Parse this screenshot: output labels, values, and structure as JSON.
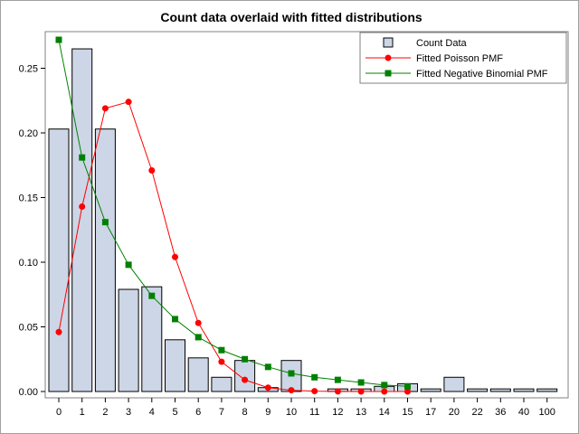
{
  "chart_data": {
    "type": "bar",
    "title": "Count data overlaid with fitted distributions",
    "xlabel": "",
    "ylabel": "",
    "categories": [
      "0",
      "1",
      "2",
      "3",
      "4",
      "5",
      "6",
      "7",
      "8",
      "9",
      "10",
      "11",
      "12",
      "13",
      "14",
      "15",
      "17",
      "20",
      "22",
      "36",
      "40",
      "100"
    ],
    "ylim": [
      0,
      0.28
    ],
    "yticks": [
      0.0,
      0.05,
      0.1,
      0.15,
      0.2,
      0.25
    ],
    "ytick_labels": [
      "0.00",
      "0.05",
      "0.10",
      "0.15",
      "0.20",
      "0.25"
    ],
    "grid": false,
    "legend_position": "top-right",
    "series": [
      {
        "name": "Count Data",
        "kind": "bar",
        "color": "#cdd6e6",
        "values": [
          0.203,
          0.265,
          0.203,
          0.079,
          0.081,
          0.04,
          0.026,
          0.011,
          0.024,
          0.003,
          0.024,
          0.0,
          0.002,
          0.002,
          0.004,
          0.006,
          0.002,
          0.011,
          0.002,
          0.002,
          0.002,
          0.002
        ]
      },
      {
        "name": "Fitted Poisson PMF",
        "kind": "line",
        "marker": "circle",
        "color": "#ff0000",
        "x": [
          "0",
          "1",
          "2",
          "3",
          "4",
          "5",
          "6",
          "7",
          "8",
          "9",
          "10",
          "11",
          "12",
          "13",
          "14",
          "15"
        ],
        "values": [
          0.046,
          0.143,
          0.219,
          0.224,
          0.171,
          0.104,
          0.053,
          0.023,
          0.009,
          0.003,
          0.001,
          0.0003,
          0.0001,
          0.0,
          0.0,
          0.0
        ]
      },
      {
        "name": "Fitted Negative Binomial PMF",
        "kind": "line",
        "marker": "square",
        "color": "#008000",
        "x": [
          "0",
          "1",
          "2",
          "3",
          "4",
          "5",
          "6",
          "7",
          "8",
          "9",
          "10",
          "11",
          "12",
          "13",
          "14",
          "15"
        ],
        "values": [
          0.272,
          0.181,
          0.131,
          0.098,
          0.074,
          0.056,
          0.042,
          0.032,
          0.025,
          0.019,
          0.014,
          0.011,
          0.009,
          0.007,
          0.005,
          0.004
        ]
      }
    ]
  }
}
